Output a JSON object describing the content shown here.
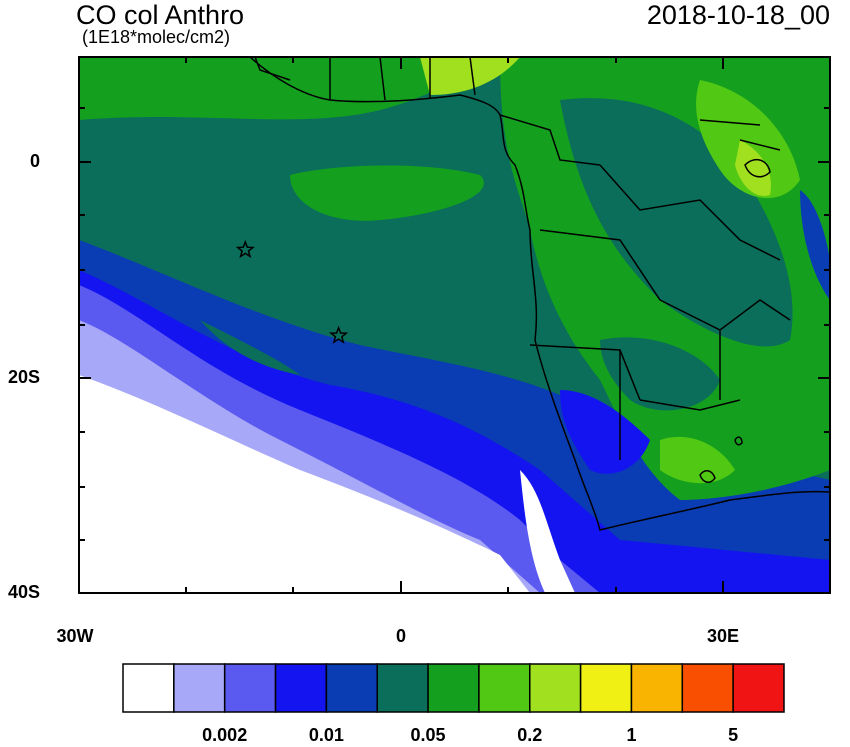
{
  "title": "CO col Anthro",
  "units": "(1E18*molec/cm2)",
  "timestamp": "2018-10-18_00",
  "lat_labels": [
    "0",
    "20S",
    "40S"
  ],
  "lon_labels": [
    "30W",
    "0",
    "30E"
  ],
  "colorbar": {
    "colors": [
      "#ffffff",
      "#a8a8f8",
      "#5a5af0",
      "#1414f0",
      "#0a3cb4",
      "#0a6e5a",
      "#14a01e",
      "#50c814",
      "#a0e01e",
      "#f0f014",
      "#f8b400",
      "#f85000",
      "#f01414"
    ],
    "labels": [
      "0.002",
      "0.01",
      "0.05",
      "0.2",
      "1",
      "5"
    ]
  },
  "markers": [
    {
      "name": "site-star",
      "lon": -14.5,
      "lat": -8
    },
    {
      "name": "site-star",
      "lon": -5.8,
      "lat": -16
    }
  ]
}
